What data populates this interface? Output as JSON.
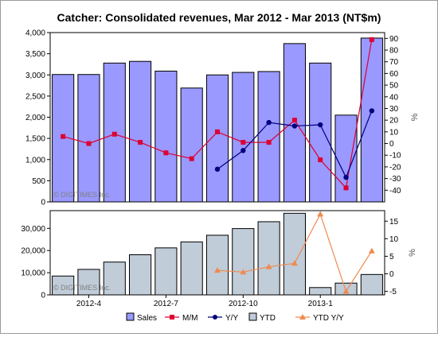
{
  "chart_data": {
    "title": "Catcher: Consolidated revenues, Mar 2012 - Mar 2013 (NT$m)",
    "watermark": "© DIGITIMES Inc.",
    "categories": [
      "2012-3",
      "2012-4",
      "2012-5",
      "2012-6",
      "2012-7",
      "2012-8",
      "2012-9",
      "2012-10",
      "2012-11",
      "2012-12",
      "2013-1",
      "2013-2",
      "2013-3"
    ],
    "x_tick_labels": [
      {
        "index": 1,
        "label": "2012-4"
      },
      {
        "index": 4,
        "label": "2012-7"
      },
      {
        "index": 7,
        "label": "2012-10"
      },
      {
        "index": 10,
        "label": "2013-1"
      }
    ],
    "top": {
      "type": "bar+line",
      "left_axis": {
        "ylim": [
          0,
          4000
        ],
        "ticks": [
          "0",
          "500",
          "1,000",
          "1,500",
          "2,000",
          "2,500",
          "3,000",
          "3,500",
          "4,000"
        ]
      },
      "right_axis": {
        "label": "%",
        "ylim": [
          -50,
          95
        ],
        "ticks": [
          "-40",
          "-30",
          "-20",
          "-10",
          "0",
          "10",
          "20",
          "30",
          "40",
          "50",
          "60",
          "70",
          "80",
          "90"
        ]
      },
      "series": [
        {
          "name": "Sales",
          "type": "bar",
          "axis": "left",
          "color": "#9999ff",
          "values": [
            3010,
            3010,
            3280,
            3320,
            3090,
            2690,
            3000,
            3060,
            3080,
            3740,
            3280,
            2050,
            3870
          ]
        },
        {
          "name": "M/M",
          "type": "line",
          "axis": "right",
          "color": "#dd0033",
          "values": [
            6,
            0,
            8,
            1,
            -8,
            -13,
            10,
            1,
            1,
            20,
            -14,
            -38,
            89
          ]
        },
        {
          "name": "Y/Y",
          "type": "line",
          "axis": "right",
          "color": "#000080",
          "values": [
            null,
            null,
            null,
            null,
            null,
            null,
            -22,
            -6,
            18,
            15,
            16,
            -29,
            28
          ]
        }
      ]
    },
    "bottom": {
      "type": "bar+line",
      "left_axis": {
        "ylim": [
          0,
          38000
        ],
        "ticks": [
          "0",
          "10,000",
          "20,000",
          "30,000"
        ]
      },
      "right_axis": {
        "label": "%",
        "ylim": [
          -6,
          18
        ],
        "ticks": [
          "-5",
          "0",
          "5",
          "10",
          "15"
        ]
      },
      "series": [
        {
          "name": "YTD",
          "type": "bar",
          "axis": "left",
          "color": "#c0ccd8",
          "values": [
            8500,
            11500,
            14800,
            18100,
            21200,
            23900,
            26900,
            29900,
            33000,
            36800,
            3300,
            5300,
            9200
          ]
        },
        {
          "name": "YTD Y/Y",
          "type": "line",
          "axis": "right",
          "color": "#f08a50",
          "values": [
            null,
            null,
            null,
            null,
            null,
            null,
            1,
            0.5,
            2,
            3,
            17,
            -5,
            6.5
          ]
        }
      ]
    },
    "legend": {
      "placement": "bottom",
      "items": [
        {
          "label": "Sales",
          "symbol": "bar",
          "color": "#9999ff"
        },
        {
          "label": "M/M",
          "symbol": "square-line",
          "color": "#dd0033"
        },
        {
          "label": "Y/Y",
          "symbol": "circle-line",
          "color": "#000080"
        },
        {
          "label": "YTD",
          "symbol": "bar",
          "color": "#c0ccd8"
        },
        {
          "label": "YTD Y/Y",
          "symbol": "triangle-line",
          "color": "#f08a50"
        }
      ]
    }
  }
}
